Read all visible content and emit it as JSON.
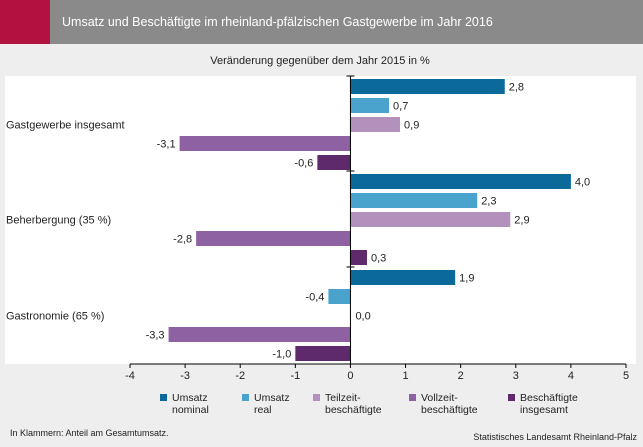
{
  "header": {
    "title": "Umsatz und Beschäftigte im rheinland-pfälzischen Gastgewerbe im Jahr 2016"
  },
  "colors": {
    "header_bg": "#8a8a8a",
    "header_accent": "#b2123f",
    "page_bg": "#eeeeee"
  },
  "chart_data": {
    "type": "bar",
    "orientation": "horizontal",
    "title": "Veränderung gegenüber dem Jahr 2015 in %",
    "categories": [
      "Gastgewerbe insgesamt",
      "Beherbergung (35 %)",
      "Gastronomie (65 %)"
    ],
    "series": [
      {
        "name": "Umsatz\nnominal",
        "color": "#0b6a9a",
        "values": [
          2.8,
          4.0,
          1.9
        ]
      },
      {
        "name": "Umsatz\nreal",
        "color": "#4aa3cd",
        "values": [
          0.7,
          2.3,
          -0.4
        ]
      },
      {
        "name": "Teilzeit-\nbeschäftigte",
        "color": "#b391bd",
        "values": [
          0.9,
          2.9,
          0.0
        ]
      },
      {
        "name": "Vollzeit-\nbeschäftigte",
        "color": "#8e62a2",
        "values": [
          -3.1,
          -2.8,
          -3.3
        ]
      },
      {
        "name": "Beschäftigte\ninsgesamt",
        "color": "#5e2a6c",
        "values": [
          -0.6,
          0.3,
          -1.0
        ]
      }
    ],
    "value_labels": [
      [
        "2,8",
        "0,7",
        "0,9",
        "-3,1",
        "-0,6"
      ],
      [
        "4,0",
        "2,3",
        "2,9",
        "-2,8",
        "0,3"
      ],
      [
        "1,9",
        "-0,4",
        "0,0",
        "-3,3",
        "-1,0"
      ]
    ],
    "xlim": [
      -4,
      5
    ],
    "xticks": [
      -4,
      -3,
      -2,
      -1,
      0,
      1,
      2,
      3,
      4,
      5
    ],
    "xtick_labels": [
      "-4",
      "-3",
      "-2",
      "-1",
      "0",
      "1",
      "2",
      "3",
      "4",
      "5"
    ],
    "grid": false,
    "legend_position": "bottom"
  },
  "footnote": "In Klammern: Anteil am Gesamtumsatz.",
  "source": "Statistisches Landesamt Rheinland-Pfalz"
}
